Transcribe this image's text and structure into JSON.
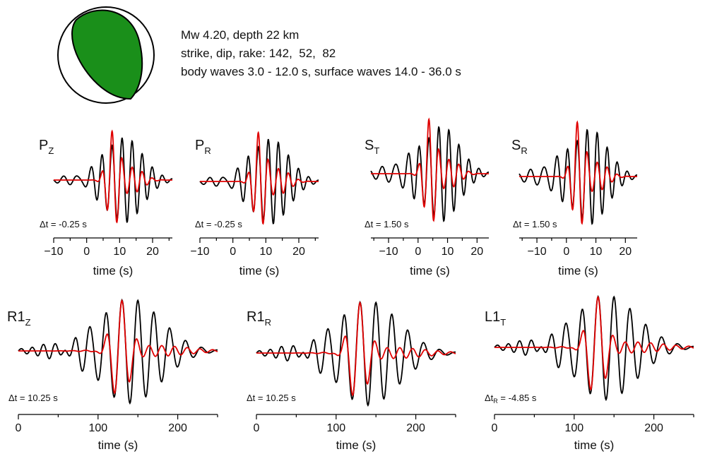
{
  "header": {
    "lines": [
      "Mw 4.20, depth 22 km",
      "strike, dip, rake: 142,  52,  82",
      "body waves 3.0 - 12.0 s, surface waves 14.0 - 36.0 s"
    ]
  },
  "colors": {
    "observed": "#000000",
    "synthetic": "#e00000",
    "beachball_fill": "#1a8f1a"
  },
  "chart_data": [
    {
      "type": "line",
      "title": "P",
      "title_sub": "Z",
      "dt_label": "Δt = -0.25 s",
      "xlabel": "time (s)",
      "xlim": [
        -10,
        26
      ],
      "ticks": [
        -10,
        0,
        10,
        20
      ],
      "tick_labels": [
        "−10",
        "0",
        "10",
        "20"
      ],
      "series": [
        {
          "role": "observed",
          "color": "#000000"
        },
        {
          "role": "synthetic",
          "color": "#e00000"
        }
      ]
    },
    {
      "type": "line",
      "title": "P",
      "title_sub": "R",
      "dt_label": "Δt = -0.25 s",
      "xlabel": "time (s)",
      "xlim": [
        -10,
        26
      ],
      "ticks": [
        -10,
        0,
        10,
        20
      ],
      "tick_labels": [
        "−10",
        "0",
        "10",
        "20"
      ],
      "series": [
        {
          "role": "observed",
          "color": "#000000"
        },
        {
          "role": "synthetic",
          "color": "#e00000"
        }
      ]
    },
    {
      "type": "line",
      "title": "S",
      "title_sub": "T",
      "dt_label": "Δt = 1.50 s",
      "xlabel": "time (s)",
      "xlim": [
        -16,
        24
      ],
      "ticks": [
        -10,
        0,
        10,
        20
      ],
      "tick_labels": [
        "−10",
        "0",
        "10",
        "20"
      ],
      "series": [
        {
          "role": "observed",
          "color": "#000000"
        },
        {
          "role": "synthetic",
          "color": "#e00000"
        }
      ]
    },
    {
      "type": "line",
      "title": "S",
      "title_sub": "R",
      "dt_label": "Δt = 1.50 s",
      "xlabel": "time (s)",
      "xlim": [
        -16,
        24
      ],
      "ticks": [
        -10,
        0,
        10,
        20
      ],
      "tick_labels": [
        "−10",
        "0",
        "10",
        "20"
      ],
      "series": [
        {
          "role": "observed",
          "color": "#000000"
        },
        {
          "role": "synthetic",
          "color": "#e00000"
        }
      ]
    },
    {
      "type": "line",
      "title": "R1",
      "title_sub": "Z",
      "dt_label": "Δt = 10.25 s",
      "xlabel": "time (s)",
      "xlim": [
        0,
        250
      ],
      "ticks": [
        0,
        100,
        200
      ],
      "tick_labels": [
        "0",
        "100",
        "200"
      ],
      "series": [
        {
          "role": "observed",
          "color": "#000000"
        },
        {
          "role": "synthetic",
          "color": "#e00000"
        }
      ]
    },
    {
      "type": "line",
      "title": "R1",
      "title_sub": "R",
      "dt_label": "Δt = 10.25 s",
      "xlabel": "time (s)",
      "xlim": [
        0,
        250
      ],
      "ticks": [
        0,
        100,
        200
      ],
      "tick_labels": [
        "0",
        "100",
        "200"
      ],
      "series": [
        {
          "role": "observed",
          "color": "#000000"
        },
        {
          "role": "synthetic",
          "color": "#e00000"
        }
      ]
    },
    {
      "type": "line",
      "title": "L1",
      "title_sub": "T",
      "dt_label": "Δt",
      "dt_sub": "R",
      "dt_rest": " = -4.85 s",
      "xlabel": "time (s)",
      "xlim": [
        0,
        250
      ],
      "ticks": [
        0,
        100,
        200
      ],
      "tick_labels": [
        "0",
        "100",
        "200"
      ],
      "series": [
        {
          "role": "observed",
          "color": "#000000"
        },
        {
          "role": "synthetic",
          "color": "#e00000"
        }
      ]
    }
  ]
}
